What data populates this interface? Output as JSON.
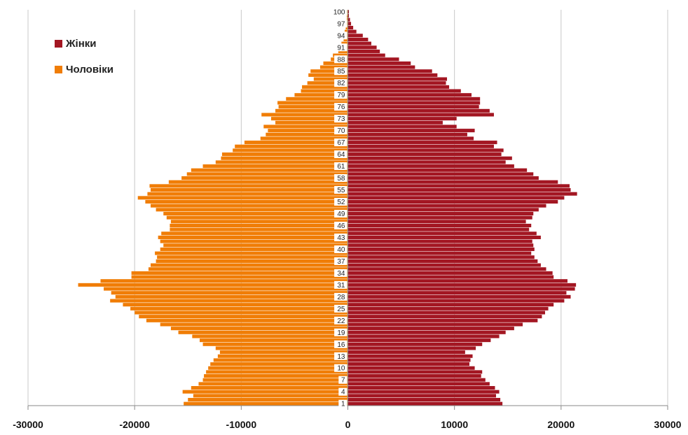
{
  "chart_data": {
    "type": "bar",
    "orientation": "horizontal",
    "subtype": "population-pyramid",
    "title": "",
    "xlabel": "",
    "ylabel": "",
    "xlim": [
      -30000,
      30000
    ],
    "x_ticks": [
      -30000,
      -20000,
      -10000,
      0,
      10000,
      20000,
      30000
    ],
    "x_tick_labels": [
      "-30000",
      "-20000",
      "-10000",
      "0",
      "10000",
      "20000",
      "30000"
    ],
    "grid": "vertical",
    "legend_position": "top-left",
    "categories": [
      1,
      2,
      3,
      4,
      5,
      6,
      7,
      8,
      9,
      10,
      11,
      12,
      13,
      14,
      15,
      16,
      17,
      18,
      19,
      20,
      21,
      22,
      23,
      24,
      25,
      26,
      27,
      28,
      29,
      30,
      31,
      32,
      33,
      34,
      35,
      36,
      37,
      38,
      39,
      40,
      41,
      42,
      43,
      44,
      45,
      46,
      47,
      48,
      49,
      50,
      51,
      52,
      53,
      54,
      55,
      56,
      57,
      58,
      59,
      60,
      61,
      62,
      63,
      64,
      65,
      66,
      67,
      68,
      69,
      70,
      71,
      72,
      73,
      74,
      75,
      76,
      77,
      78,
      79,
      80,
      81,
      82,
      83,
      84,
      85,
      86,
      87,
      88,
      89,
      90,
      91,
      92,
      93,
      94,
      95,
      96,
      97,
      98,
      99,
      100
    ],
    "y_tick_labels": [
      "1",
      "4",
      "7",
      "10",
      "13",
      "16",
      "19",
      "22",
      "25",
      "28",
      "31",
      "34",
      "37",
      "40",
      "43",
      "46",
      "49",
      "52",
      "55",
      "58",
      "61",
      "64",
      "67",
      "70",
      "73",
      "76",
      "79",
      "82",
      "85",
      "88",
      "91",
      "94",
      "97",
      "100"
    ],
    "series": [
      {
        "name": "Жінки",
        "color": "#a31622",
        "values": [
          14500,
          14300,
          13900,
          14200,
          13800,
          13300,
          12900,
          12500,
          12600,
          11900,
          11400,
          11500,
          11700,
          11000,
          12000,
          12600,
          13400,
          14200,
          14800,
          15600,
          16400,
          17800,
          18200,
          18500,
          18800,
          19300,
          20300,
          20900,
          20500,
          21300,
          21400,
          20600,
          19300,
          19200,
          18600,
          18100,
          17800,
          17500,
          17200,
          17500,
          17400,
          17300,
          18100,
          17700,
          17000,
          17200,
          16700,
          17300,
          17400,
          17900,
          18600,
          19700,
          20300,
          21500,
          20900,
          20800,
          19700,
          17900,
          17400,
          16800,
          15600,
          14800,
          15400,
          14400,
          14600,
          13700,
          14000,
          11800,
          11200,
          11900,
          10200,
          8900,
          10200,
          13700,
          13300,
          12300,
          12400,
          12400,
          11600,
          10600,
          9500,
          9200,
          9300,
          8400,
          7900,
          6300,
          5900,
          4800,
          3500,
          3000,
          2700,
          2200,
          1900,
          1400,
          800,
          500,
          300,
          200,
          100,
          100
        ],
        "dominant_color": "#a31622"
      },
      {
        "name": "Чоловіки",
        "color": "#f07d06",
        "values": [
          15400,
          15000,
          14500,
          15500,
          14700,
          14000,
          13600,
          13500,
          13300,
          13100,
          12900,
          12600,
          12200,
          12000,
          12400,
          13600,
          13900,
          14600,
          15900,
          16600,
          17600,
          18900,
          19600,
          20000,
          20400,
          21100,
          22300,
          21800,
          22200,
          22900,
          25300,
          23200,
          20300,
          20300,
          18700,
          18500,
          18000,
          17900,
          18100,
          17600,
          17300,
          17600,
          17800,
          17500,
          16700,
          16700,
          16600,
          17000,
          17300,
          18000,
          18500,
          19000,
          19700,
          18800,
          18500,
          18600,
          16800,
          15600,
          15100,
          14700,
          13600,
          12400,
          11900,
          11800,
          10800,
          10600,
          9700,
          8200,
          7700,
          7500,
          7900,
          6800,
          7200,
          8100,
          6800,
          6500,
          6600,
          5800,
          5000,
          4400,
          4300,
          3800,
          3200,
          3700,
          3500,
          2600,
          2300,
          1600,
          1400,
          900,
          700,
          600,
          400,
          400,
          300,
          200,
          200,
          100,
          100,
          100
        ],
        "dominant_color": "#f07d06"
      }
    ],
    "legend": [
      "Жінки",
      "Чоловіки"
    ]
  }
}
